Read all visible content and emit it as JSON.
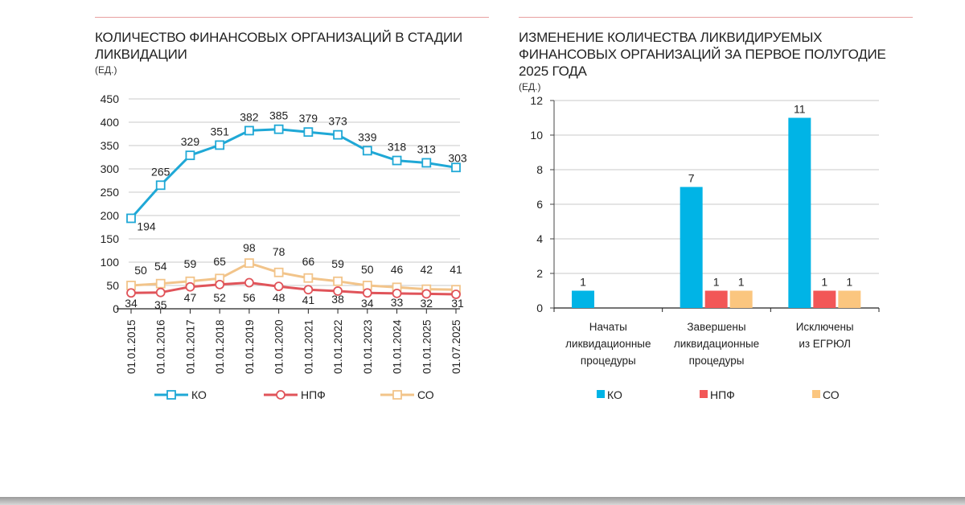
{
  "left": {
    "title_line1": "КОЛИЧЕСТВО ФИНАНСОВЫХ ОРГАНИЗАЦИЙ В СТАДИИ",
    "title_line2": "ЛИКВИДАЦИИ",
    "unit": "(ЕД.)"
  },
  "right": {
    "title_line1": "ИЗМЕНЕНИЕ КОЛИЧЕСТВА ЛИКВИДИРУЕМЫХ",
    "title_line2": "ФИНАНСОВЫХ ОРГАНИЗАЦИЙ ЗА ПЕРВОЕ ПОЛУГОДИЕ",
    "title_line3": "2025 ГОДА",
    "unit": "(ЕД.)"
  },
  "colors": {
    "ko": "#1fa8d6",
    "npf": "#e0545a",
    "so": "#f2c48a",
    "ko_bar": "#00b4e6",
    "npf_bar": "#f25757",
    "so_bar": "#fbc67f",
    "rule": "#e8a0a0"
  },
  "chart_data": [
    {
      "type": "line",
      "title": "КОЛИЧЕСТВО ФИНАНСОВЫХ ОРГАНИЗАЦИЙ В СТАДИИ ЛИКВИДАЦИИ",
      "ylabel": "(ЕД.)",
      "ylim": [
        0,
        450
      ],
      "yticks": [
        0,
        50,
        100,
        150,
        200,
        250,
        300,
        350,
        400,
        450
      ],
      "grid": true,
      "legend_position": "bottom",
      "x": [
        "01.01.2015",
        "01.01.2016",
        "01.01.2017",
        "01.01.2018",
        "01.01.2019",
        "01.01.2020",
        "01.01.2021",
        "01.01.2022",
        "01.01.2023",
        "01.01.2024",
        "01.01.2025",
        "01.07.2025"
      ],
      "series": [
        {
          "name": "КО",
          "marker": "square",
          "values": [
            194,
            265,
            329,
            351,
            382,
            385,
            379,
            373,
            339,
            318,
            313,
            303
          ]
        },
        {
          "name": "НПФ",
          "marker": "circle",
          "values": [
            34,
            35,
            47,
            52,
            56,
            48,
            41,
            38,
            34,
            33,
            32,
            31
          ]
        },
        {
          "name": "СО",
          "marker": "square",
          "values": [
            50,
            54,
            59,
            65,
            98,
            78,
            66,
            59,
            50,
            46,
            42,
            41
          ]
        }
      ]
    },
    {
      "type": "bar",
      "title": "ИЗМЕНЕНИЕ КОЛИЧЕСТВА ЛИКВИДИРУЕМЫХ ФИНАНСОВЫХ ОРГАНИЗАЦИЙ ЗА ПЕРВОЕ ПОЛУГОДИЕ 2025 ГОДА",
      "ylabel": "(ЕД.)",
      "ylim": [
        0,
        12
      ],
      "yticks": [
        0,
        2,
        4,
        6,
        8,
        10,
        12
      ],
      "grid": true,
      "legend_position": "bottom",
      "categories": [
        [
          "Начаты",
          "ликвидационные",
          "процедуры"
        ],
        [
          "Завершены",
          "ликвидационные",
          "процедуры"
        ],
        [
          "Исключены",
          "из ЕГРЮЛ"
        ]
      ],
      "series": [
        {
          "name": "КО",
          "values": [
            1,
            7,
            11
          ]
        },
        {
          "name": "НПФ",
          "values": [
            0,
            1,
            1
          ]
        },
        {
          "name": "СО",
          "values": [
            0,
            1,
            1
          ]
        }
      ]
    }
  ]
}
